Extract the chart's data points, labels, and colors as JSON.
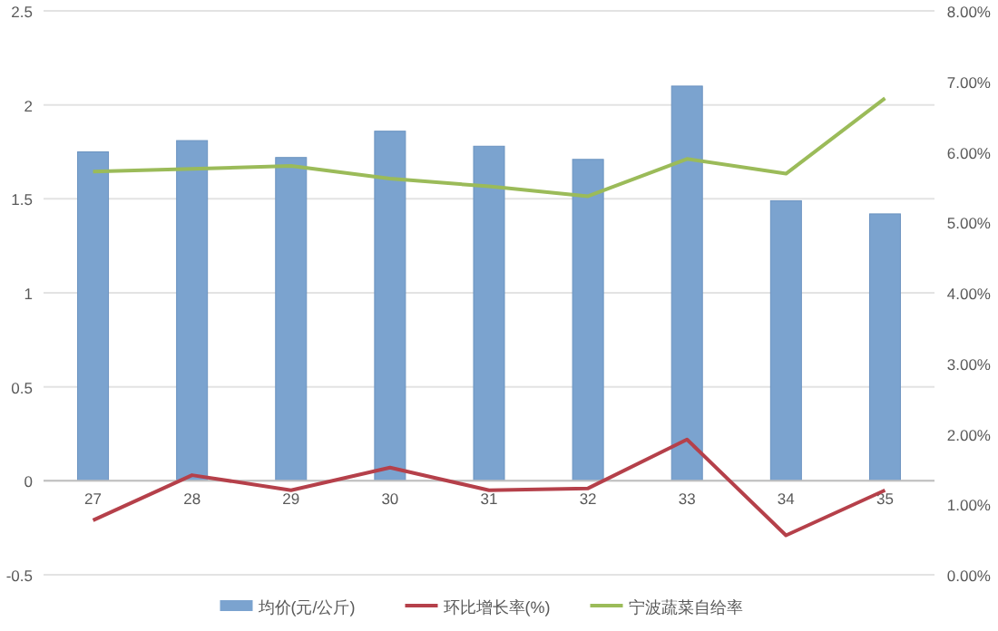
{
  "chart_data": {
    "type": "bar",
    "categories": [
      "27",
      "28",
      "29",
      "30",
      "31",
      "32",
      "33",
      "34",
      "35"
    ],
    "series": [
      {
        "name": "均价(元/公斤)",
        "color": "#7ba3cf",
        "values": [
          1.75,
          1.81,
          1.72,
          1.86,
          1.78,
          1.71,
          2.1,
          1.49,
          1.42
        ]
      },
      {
        "name": "环比增长率(%)",
        "type": "line",
        "color": "#b5404a",
        "values": [
          -0.21,
          0.03,
          -0.05,
          0.07,
          -0.05,
          -0.04,
          0.22,
          -0.29,
          -0.05
        ]
      },
      {
        "name": "宁波蔬菜自给率",
        "type": "line",
        "axis": "y2",
        "color": "#9bbb59",
        "values": [
          5.72,
          5.76,
          5.8,
          5.62,
          5.51,
          5.37,
          5.9,
          5.69,
          6.76
        ]
      }
    ],
    "ylim": [
      -0.5,
      2.5
    ],
    "yticks": [
      -0.5,
      0,
      0.5,
      1,
      1.5,
      2,
      2.5
    ],
    "y2lim": [
      0,
      8
    ],
    "y2ticks": [
      {
        "value": 0,
        "label": "0.00%"
      },
      {
        "value": 1,
        "label": "1.00%"
      },
      {
        "value": 2,
        "label": "2.00%"
      },
      {
        "value": 3,
        "label": "3.00%"
      },
      {
        "value": 4,
        "label": "4.00%"
      },
      {
        "value": 5,
        "label": "5.00%"
      },
      {
        "value": 6,
        "label": "6.00%"
      },
      {
        "value": 7,
        "label": "7.00%"
      },
      {
        "value": 8,
        "label": "8.00%"
      }
    ],
    "grid": "y",
    "legend": "bottom",
    "marker": "none",
    "line_style": "solid"
  }
}
